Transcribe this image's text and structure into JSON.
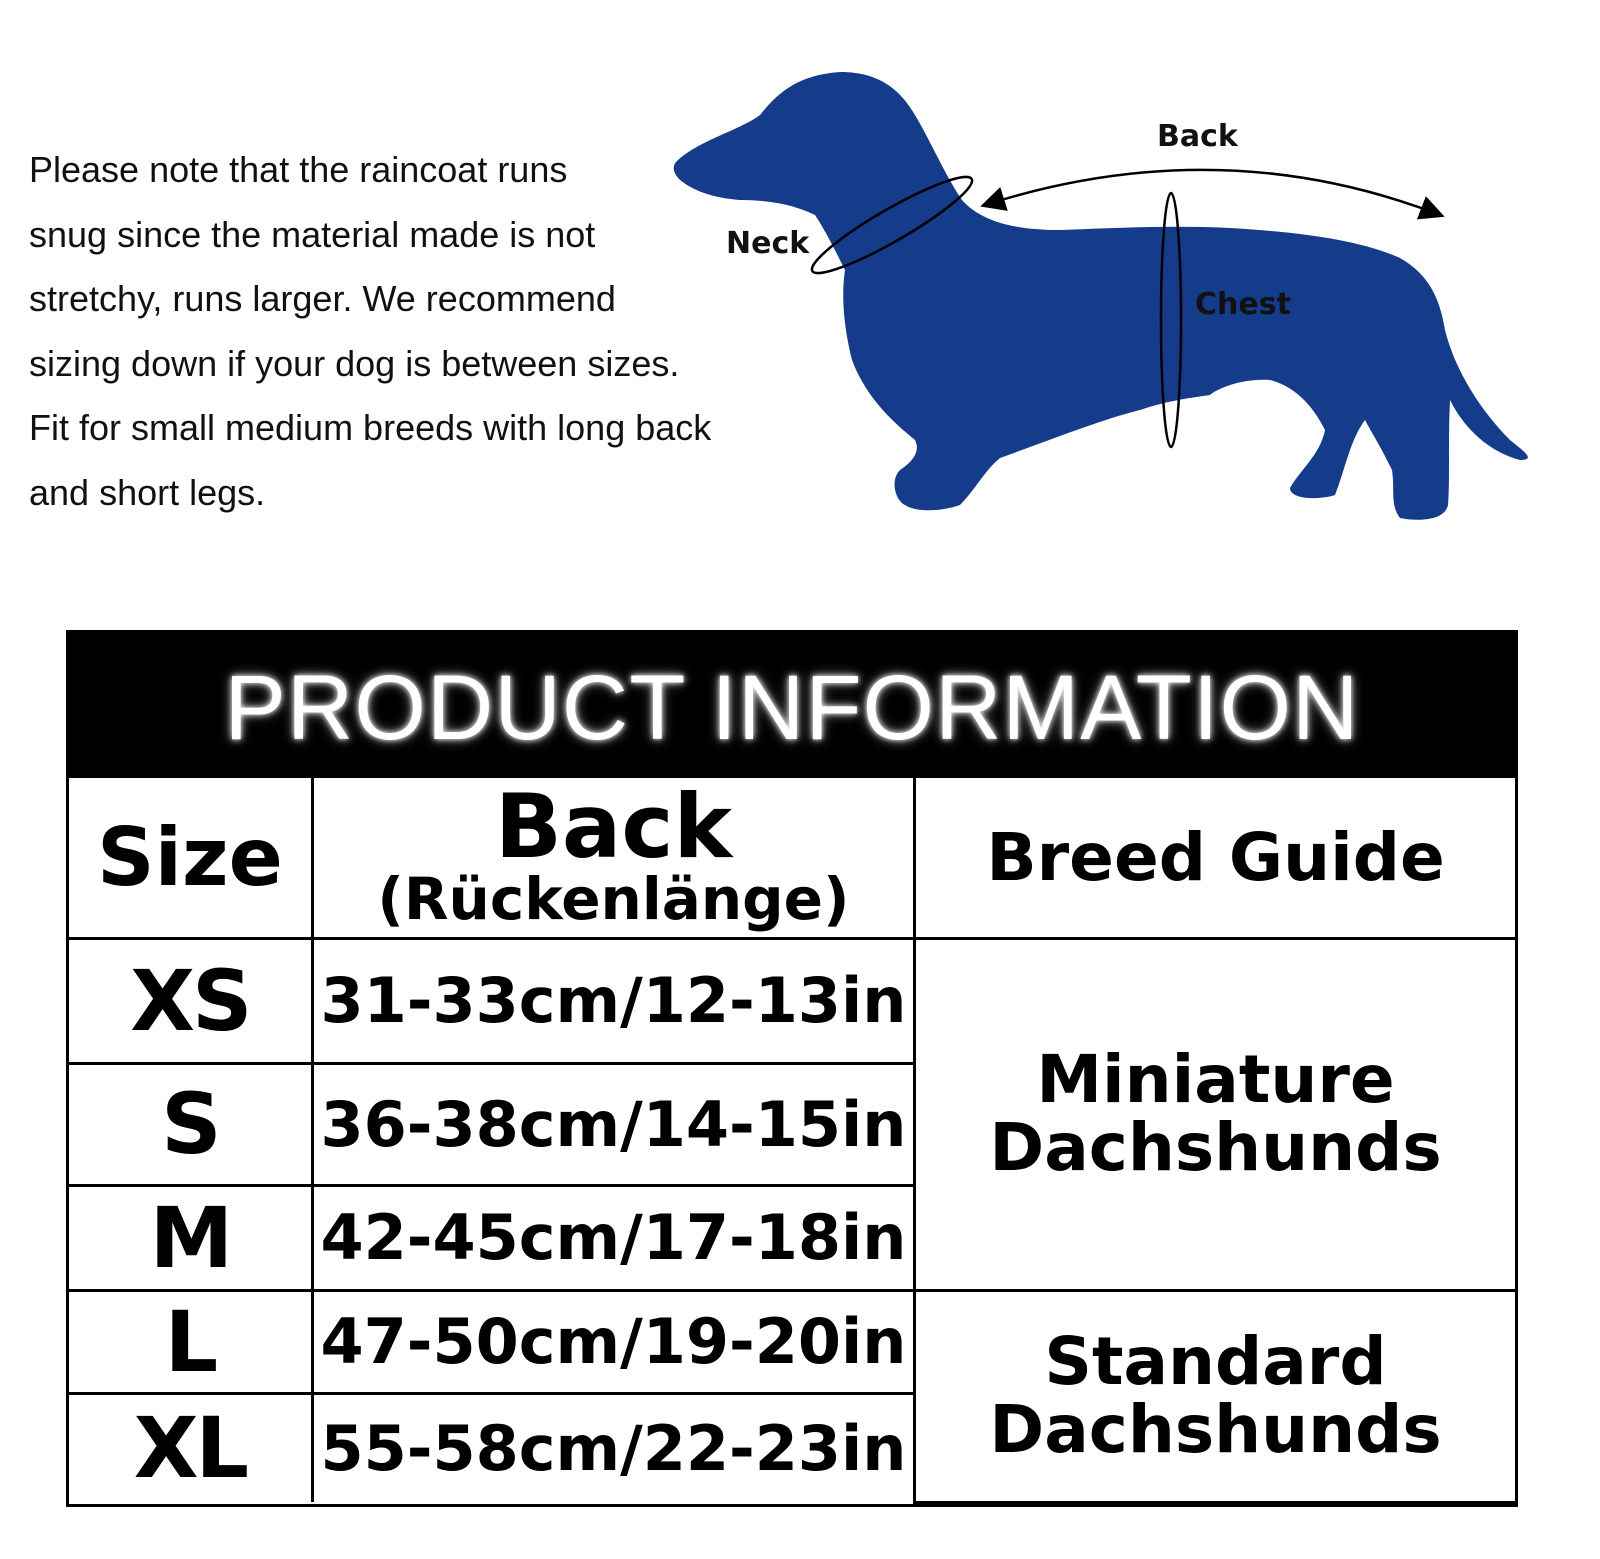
{
  "note": {
    "lines": [
      "Please note that the raincoat runs",
      "snug since the material made is not",
      "stretchy, runs larger. We recommend",
      "sizing down if your dog is between sizes.",
      "Fit for small medium breeds with long back",
      "and short legs."
    ]
  },
  "diagram": {
    "neck_label": "Neck",
    "back_label": "Back",
    "chest_label": "Chest",
    "dog_color": "#143c8a"
  },
  "table": {
    "title": "PRODUCT INFORMATION",
    "headers": {
      "size": "Size",
      "back": "Back",
      "back_sub": "(Rückenlänge)",
      "breed": "Breed Guide"
    },
    "rows": [
      {
        "size": "XS",
        "back": "31-33cm/12-13in"
      },
      {
        "size": "S",
        "back": "36-38cm/14-15in"
      },
      {
        "size": "M",
        "back": "42-45cm/17-18in"
      },
      {
        "size": "L",
        "back": "47-50cm/19-20in"
      },
      {
        "size": "XL",
        "back": "55-58cm/22-23in"
      }
    ],
    "breeds": [
      {
        "line1": "Miniature",
        "line2": "Dachshunds"
      },
      {
        "line1": "Standard",
        "line2": "Dachshunds"
      }
    ]
  }
}
